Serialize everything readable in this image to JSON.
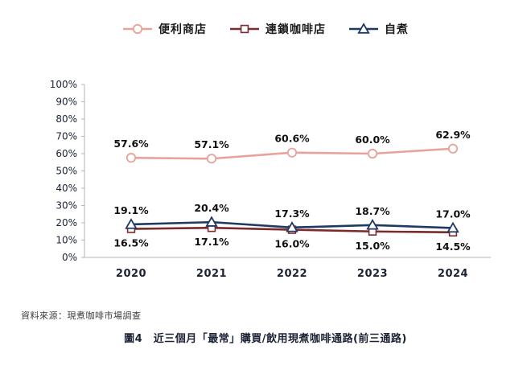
{
  "chart_data": {
    "type": "line",
    "x": [
      "2020",
      "2021",
      "2022",
      "2023",
      "2024"
    ],
    "series": [
      {
        "name": "便利商店",
        "values": [
          57.6,
          57.1,
          60.6,
          60.0,
          62.9
        ],
        "color": "#e9a29b",
        "marker": "circle",
        "label_position": "above"
      },
      {
        "name": "連鎖咖啡店",
        "values": [
          16.5,
          17.1,
          16.0,
          15.0,
          14.5
        ],
        "color": "#7c2a2d",
        "marker": "square",
        "label_position": "below"
      },
      {
        "name": "自煮",
        "values": [
          19.1,
          20.4,
          17.3,
          18.7,
          17.0
        ],
        "color": "#1f3864",
        "marker": "triangle",
        "label_position": "above"
      }
    ],
    "ylim": [
      0,
      100
    ],
    "ytick_step": 10,
    "ytick_suffix": "%",
    "legend_position": "top",
    "grid": false
  },
  "footer": {
    "source": "資料來源：現煮咖啡市場調查",
    "caption": "圖4　近三個月「最常」購買/飲用現煮咖啡通路(前三通路)"
  },
  "colors": {
    "axis": "#b5b5b5",
    "tick_text": "#1a2233",
    "data_label_text": "#101010"
  }
}
